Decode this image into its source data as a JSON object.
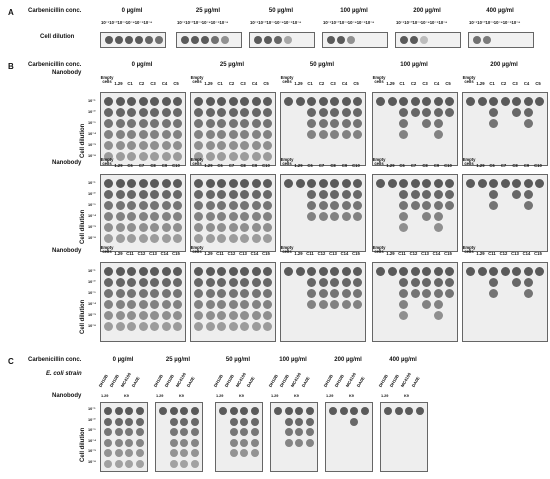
{
  "panel_a": {
    "letter": "A",
    "conc_label": "Carbenicillin conc.",
    "row_label": "Cell dilution",
    "concentrations": [
      "0 µg/ml",
      "25 µg/ml",
      "50 µg/ml",
      "100 µg/ml",
      "200 µg/ml",
      "400 µg/ml"
    ],
    "dilutions": "10⁻¹10⁻²10⁻³10⁻⁴10⁻⁵10⁻⁶",
    "spot_levels": [
      [
        1,
        1,
        1,
        1,
        1,
        0.8
      ],
      [
        1,
        1,
        1,
        1,
        1,
        0.7
      ],
      [
        1,
        1,
        0.9,
        0.5,
        0.1,
        0
      ],
      [
        1,
        0.8,
        0.3,
        0,
        0,
        0
      ],
      [
        0.9,
        0.5,
        0,
        0,
        0,
        0
      ],
      [
        0.8,
        0,
        0,
        0,
        0,
        0
      ]
    ]
  },
  "panel_b": {
    "letter": "B",
    "conc_label": "Carbenicillin conc.",
    "nanobody_label": "Nanobody",
    "row_label": "Cell dilution",
    "concentrations": [
      "0 µg/ml",
      "25 µg/ml",
      "50 µg/ml",
      "100 µg/ml",
      "200 µg/ml"
    ],
    "row_dilutions": [
      "10⁻¹",
      "10⁻²",
      "10⁻³",
      "10⁻⁴",
      "10⁻⁵",
      "10⁻⁶"
    ],
    "groups": [
      {
        "columns": [
          "Empty cells",
          "1.29",
          "C1",
          "C2",
          "C3",
          "C4",
          "C5"
        ],
        "survival": [
          6,
          6,
          4,
          2,
          1
        ]
      },
      {
        "columns": [
          "Empty cells",
          "1.29",
          "C6",
          "C7",
          "C8",
          "C9",
          "C10"
        ],
        "survival": [
          6,
          6,
          4,
          3,
          1
        ]
      },
      {
        "columns": [
          "Empty cells",
          "1.29",
          "C11",
          "C12",
          "C13",
          "C14",
          "C15"
        ],
        "survival": [
          6,
          6,
          4,
          3,
          1
        ]
      }
    ]
  },
  "panel_c": {
    "letter": "C",
    "conc_label": "Carbenicillin conc.",
    "strain_label": "E. coli strain",
    "nanobody_label": "Nanobody",
    "row_label": "Cell dilution",
    "concentrations": [
      "0 µg/ml",
      "25 µg/ml",
      "50 µg/ml",
      "100 µg/ml",
      "200 µg/ml",
      "400 µg/ml"
    ],
    "strains": [
      "DH10B",
      "DH10B",
      "MC4100",
      "DA0E"
    ],
    "nanobodies": [
      "1.29",
      "K9"
    ],
    "row_dilutions": [
      "10⁻¹",
      "10⁻²",
      "10⁻³",
      "10⁻⁴",
      "10⁻⁵",
      "10⁻⁶"
    ],
    "survival": [
      6,
      6,
      5,
      4,
      2,
      1
    ]
  }
}
